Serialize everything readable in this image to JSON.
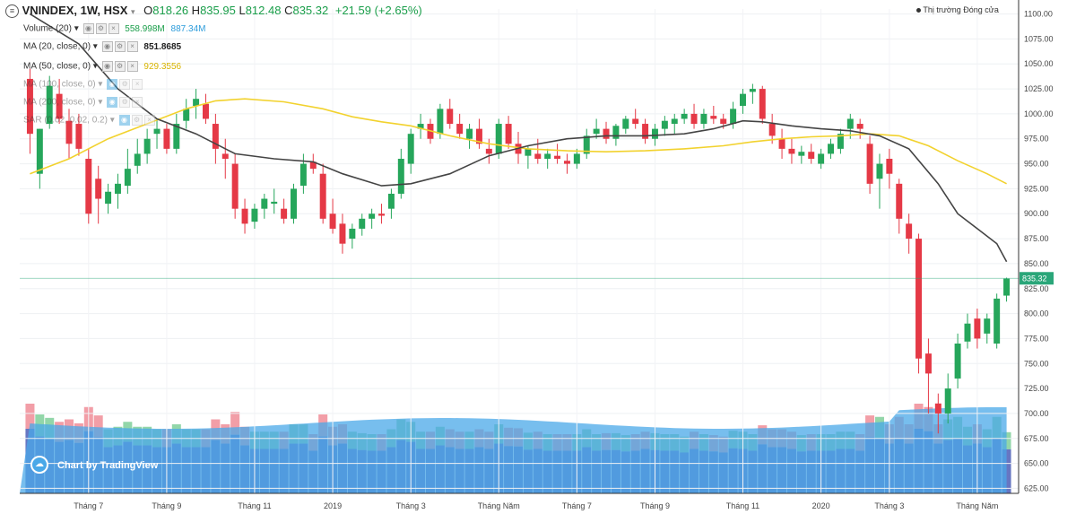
{
  "header": {
    "symbol": "VNINDEX, 1W, HSX",
    "open_label": "O",
    "open": "818.26",
    "high_label": "H",
    "high": "835.95",
    "low_label": "L",
    "low": "812.48",
    "close_label": "C",
    "close": "835.32",
    "change": "+21.59 (+2.65%)"
  },
  "indicators": [
    {
      "label": "Volume (20)",
      "value1": "558.998M",
      "value2": "887.34M"
    },
    {
      "label": "MA (20, close, 0)",
      "value1": "851.8685"
    },
    {
      "label": "MA (50, close, 0)",
      "value1": "929.3556"
    },
    {
      "label": "MA (100, close, 0)"
    },
    {
      "label": "MA (200, close, 0)"
    },
    {
      "label": "SAR (0.02, 0.02, 0.2)"
    }
  ],
  "legend": {
    "series_label": "Thị trường Đóng cửa"
  },
  "watermark": "Chart by TradingView",
  "colors": {
    "up": "#26a65b",
    "down": "#e53946",
    "ma20": "#444444",
    "ma50": "#f2d22e",
    "vol_ma": "#4aa8e8",
    "vol_bar": "#5f6fbf",
    "vol_up": "#7fcf9a",
    "vol_down": "#f08d98",
    "last_price": "#2aa679"
  },
  "chart_data": {
    "type": "candlestick",
    "title": "VNINDEX, 1W, HSX",
    "y_ticks": [
      1100,
      1075,
      1050,
      1025,
      1000,
      975,
      950,
      925,
      900,
      875,
      850,
      825,
      800,
      775,
      750,
      725,
      700,
      675,
      650,
      625
    ],
    "y_tick_labels": [
      "1100.00",
      "1075.00",
      "1050.00",
      "1025.00",
      "1000.00",
      "975.00",
      "950.00",
      "925.00",
      "900.00",
      "875.00",
      "850.00",
      "825.00",
      "800.00",
      "775.00",
      "750.00",
      "725.00",
      "700.00",
      "675.00",
      "650.00",
      "625.00"
    ],
    "ylim": [
      620,
      1105
    ],
    "x_ticks": [
      {
        "index": 6,
        "label": "Tháng 7"
      },
      {
        "index": 14,
        "label": "Tháng 9"
      },
      {
        "index": 23,
        "label": "Tháng 11"
      },
      {
        "index": 31,
        "label": "2019"
      },
      {
        "index": 39,
        "label": "Tháng 3"
      },
      {
        "index": 48,
        "label": "Tháng Năm"
      },
      {
        "index": 56,
        "label": "Tháng 7"
      },
      {
        "index": 64,
        "label": "Tháng 9"
      },
      {
        "index": 73,
        "label": "Tháng 11"
      },
      {
        "index": 81,
        "label": "2020"
      },
      {
        "index": 88,
        "label": "Tháng 3"
      },
      {
        "index": 97,
        "label": "Tháng Năm"
      }
    ],
    "last_price_label": "835.32",
    "last_price": 835.32,
    "candles": [
      [
        1035,
        1045,
        960,
        980
      ],
      [
        940,
        985,
        925,
        985
      ],
      [
        990,
        1038,
        985,
        1028
      ],
      [
        1020,
        1035,
        990,
        995
      ],
      [
        993,
        1005,
        955,
        970
      ],
      [
        990,
        1000,
        958,
        965
      ],
      [
        955,
        965,
        890,
        900
      ],
      [
        935,
        948,
        890,
        915
      ],
      [
        910,
        930,
        900,
        922
      ],
      [
        920,
        940,
        905,
        930
      ],
      [
        928,
        965,
        920,
        945
      ],
      [
        948,
        975,
        940,
        960
      ],
      [
        960,
        985,
        950,
        975
      ],
      [
        980,
        995,
        965,
        985
      ],
      [
        985,
        990,
        960,
        965
      ],
      [
        965,
        1000,
        960,
        990
      ],
      [
        993,
        1015,
        985,
        1005
      ],
      [
        1008,
        1025,
        995,
        1015
      ],
      [
        1010,
        1020,
        990,
        995
      ],
      [
        990,
        1000,
        950,
        965
      ],
      [
        960,
        975,
        935,
        955
      ],
      [
        950,
        960,
        895,
        905
      ],
      [
        905,
        915,
        880,
        890
      ],
      [
        892,
        910,
        885,
        905
      ],
      [
        905,
        920,
        895,
        915
      ],
      [
        910,
        925,
        900,
        912
      ],
      [
        905,
        915,
        890,
        895
      ],
      [
        895,
        930,
        890,
        925
      ],
      [
        928,
        960,
        920,
        950
      ],
      [
        952,
        960,
        940,
        945
      ],
      [
        940,
        950,
        890,
        895
      ],
      [
        900,
        915,
        880,
        885
      ],
      [
        890,
        900,
        860,
        870
      ],
      [
        875,
        890,
        865,
        885
      ],
      [
        885,
        900,
        878,
        895
      ],
      [
        895,
        905,
        885,
        900
      ],
      [
        900,
        910,
        890,
        898
      ],
      [
        905,
        925,
        895,
        920
      ],
      [
        920,
        965,
        915,
        955
      ],
      [
        950,
        985,
        940,
        980
      ],
      [
        985,
        1000,
        975,
        990
      ],
      [
        990,
        995,
        970,
        975
      ],
      [
        980,
        1010,
        975,
        1005
      ],
      [
        1005,
        1015,
        985,
        990
      ],
      [
        990,
        1000,
        975,
        980
      ],
      [
        975,
        990,
        965,
        985
      ],
      [
        985,
        995,
        965,
        970
      ],
      [
        965,
        975,
        950,
        960
      ],
      [
        960,
        995,
        955,
        990
      ],
      [
        990,
        998,
        965,
        970
      ],
      [
        970,
        982,
        950,
        960
      ],
      [
        958,
        968,
        945,
        965
      ],
      [
        960,
        975,
        950,
        955
      ],
      [
        955,
        965,
        945,
        960
      ],
      [
        958,
        970,
        950,
        955
      ],
      [
        953,
        960,
        940,
        950
      ],
      [
        950,
        965,
        945,
        960
      ],
      [
        960,
        985,
        955,
        978
      ],
      [
        980,
        995,
        975,
        985
      ],
      [
        985,
        992,
        970,
        975
      ],
      [
        975,
        990,
        968,
        988
      ],
      [
        985,
        998,
        980,
        995
      ],
      [
        995,
        1005,
        985,
        990
      ],
      [
        990,
        995,
        970,
        975
      ],
      [
        975,
        990,
        968,
        985
      ],
      [
        985,
        998,
        978,
        993
      ],
      [
        990,
        1000,
        980,
        995
      ],
      [
        995,
        1005,
        990,
        1000
      ],
      [
        1000,
        1010,
        985,
        990
      ],
      [
        990,
        1005,
        985,
        1000
      ],
      [
        998,
        1008,
        990,
        995
      ],
      [
        995,
        1000,
        985,
        990
      ],
      [
        990,
        1012,
        985,
        1005
      ],
      [
        1008,
        1025,
        1000,
        1020
      ],
      [
        1022,
        1030,
        1010,
        1025
      ],
      [
        1025,
        1028,
        990,
        995
      ],
      [
        990,
        1000,
        970,
        978
      ],
      [
        975,
        985,
        955,
        965
      ],
      [
        965,
        975,
        950,
        960
      ],
      [
        958,
        968,
        950,
        962
      ],
      [
        962,
        970,
        950,
        955
      ],
      [
        950,
        965,
        945,
        960
      ],
      [
        960,
        975,
        955,
        970
      ],
      [
        965,
        985,
        960,
        980
      ],
      [
        985,
        1000,
        975,
        995
      ],
      [
        990,
        995,
        975,
        985
      ],
      [
        970,
        978,
        920,
        930
      ],
      [
        935,
        960,
        905,
        950
      ],
      [
        955,
        965,
        925,
        940
      ],
      [
        930,
        935,
        880,
        895
      ],
      [
        890,
        900,
        860,
        875
      ],
      [
        875,
        880,
        740,
        755
      ],
      [
        760,
        775,
        700,
        740
      ],
      [
        710,
        720,
        680,
        700
      ],
      [
        700,
        740,
        690,
        725
      ],
      [
        735,
        780,
        725,
        770
      ],
      [
        772,
        800,
        765,
        790
      ],
      [
        795,
        805,
        765,
        775
      ],
      [
        780,
        800,
        770,
        795
      ],
      [
        770,
        820,
        765,
        815
      ],
      [
        818,
        836,
        812,
        835
      ]
    ],
    "volume": [
      {
        "v": 740,
        "up": false
      }
    ],
    "ma20": [
      [
        0,
        1100
      ],
      [
        5,
        1070
      ],
      [
        9,
        1025
      ],
      [
        13,
        995
      ],
      [
        17,
        980
      ],
      [
        21,
        960
      ],
      [
        25,
        955
      ],
      [
        29,
        952
      ],
      [
        32,
        940
      ],
      [
        36,
        928
      ],
      [
        39,
        930
      ],
      [
        43,
        940
      ],
      [
        47,
        958
      ],
      [
        51,
        968
      ],
      [
        55,
        975
      ],
      [
        59,
        978
      ],
      [
        63,
        978
      ],
      [
        67,
        980
      ],
      [
        70,
        985
      ],
      [
        73,
        993
      ],
      [
        75,
        992
      ],
      [
        78,
        988
      ],
      [
        81,
        985
      ],
      [
        84,
        983
      ],
      [
        87,
        978
      ],
      [
        90,
        965
      ],
      [
        93,
        930
      ],
      [
        95,
        900
      ],
      [
        97,
        885
      ],
      [
        99,
        870
      ],
      [
        100,
        852
      ]
    ],
    "ma50": [
      [
        0,
        940
      ],
      [
        4,
        955
      ],
      [
        8,
        975
      ],
      [
        12,
        990
      ],
      [
        16,
        1005
      ],
      [
        19,
        1013
      ],
      [
        22,
        1015
      ],
      [
        26,
        1012
      ],
      [
        30,
        1005
      ],
      [
        33,
        997
      ],
      [
        36,
        992
      ],
      [
        39,
        988
      ],
      [
        43,
        978
      ],
      [
        47,
        970
      ],
      [
        51,
        965
      ],
      [
        55,
        963
      ],
      [
        59,
        962
      ],
      [
        63,
        963
      ],
      [
        67,
        965
      ],
      [
        71,
        968
      ],
      [
        74,
        972
      ],
      [
        77,
        975
      ],
      [
        80,
        977
      ],
      [
        83,
        978
      ],
      [
        86,
        980
      ],
      [
        89,
        978
      ],
      [
        92,
        968
      ],
      [
        95,
        953
      ],
      [
        98,
        940
      ],
      [
        100,
        930
      ]
    ]
  }
}
